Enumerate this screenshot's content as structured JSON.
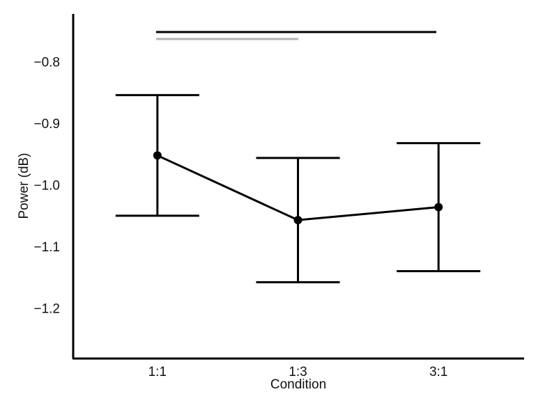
{
  "chart_data": {
    "type": "line",
    "x_label": "Condition",
    "y_label": "Power (dB)",
    "categories": [
      "1:1",
      "1:3",
      "3:1"
    ],
    "series": [
      {
        "color": "#000000",
        "values": [
          -0.95,
          -1.055,
          -1.034
        ],
        "errors": [
          0.098,
          0.101,
          0.104
        ]
      }
    ],
    "ylim": [
      -1.28,
      -0.72
    ],
    "yticks": [
      {
        "value": -0.8,
        "label": "−0.8"
      },
      {
        "value": -0.9,
        "label": "−0.9"
      },
      {
        "value": -1.0,
        "label": "−1.0"
      },
      {
        "value": -1.1,
        "label": "−1.1"
      },
      {
        "value": -1.2,
        "label": "−1.2"
      }
    ],
    "grid": false
  }
}
